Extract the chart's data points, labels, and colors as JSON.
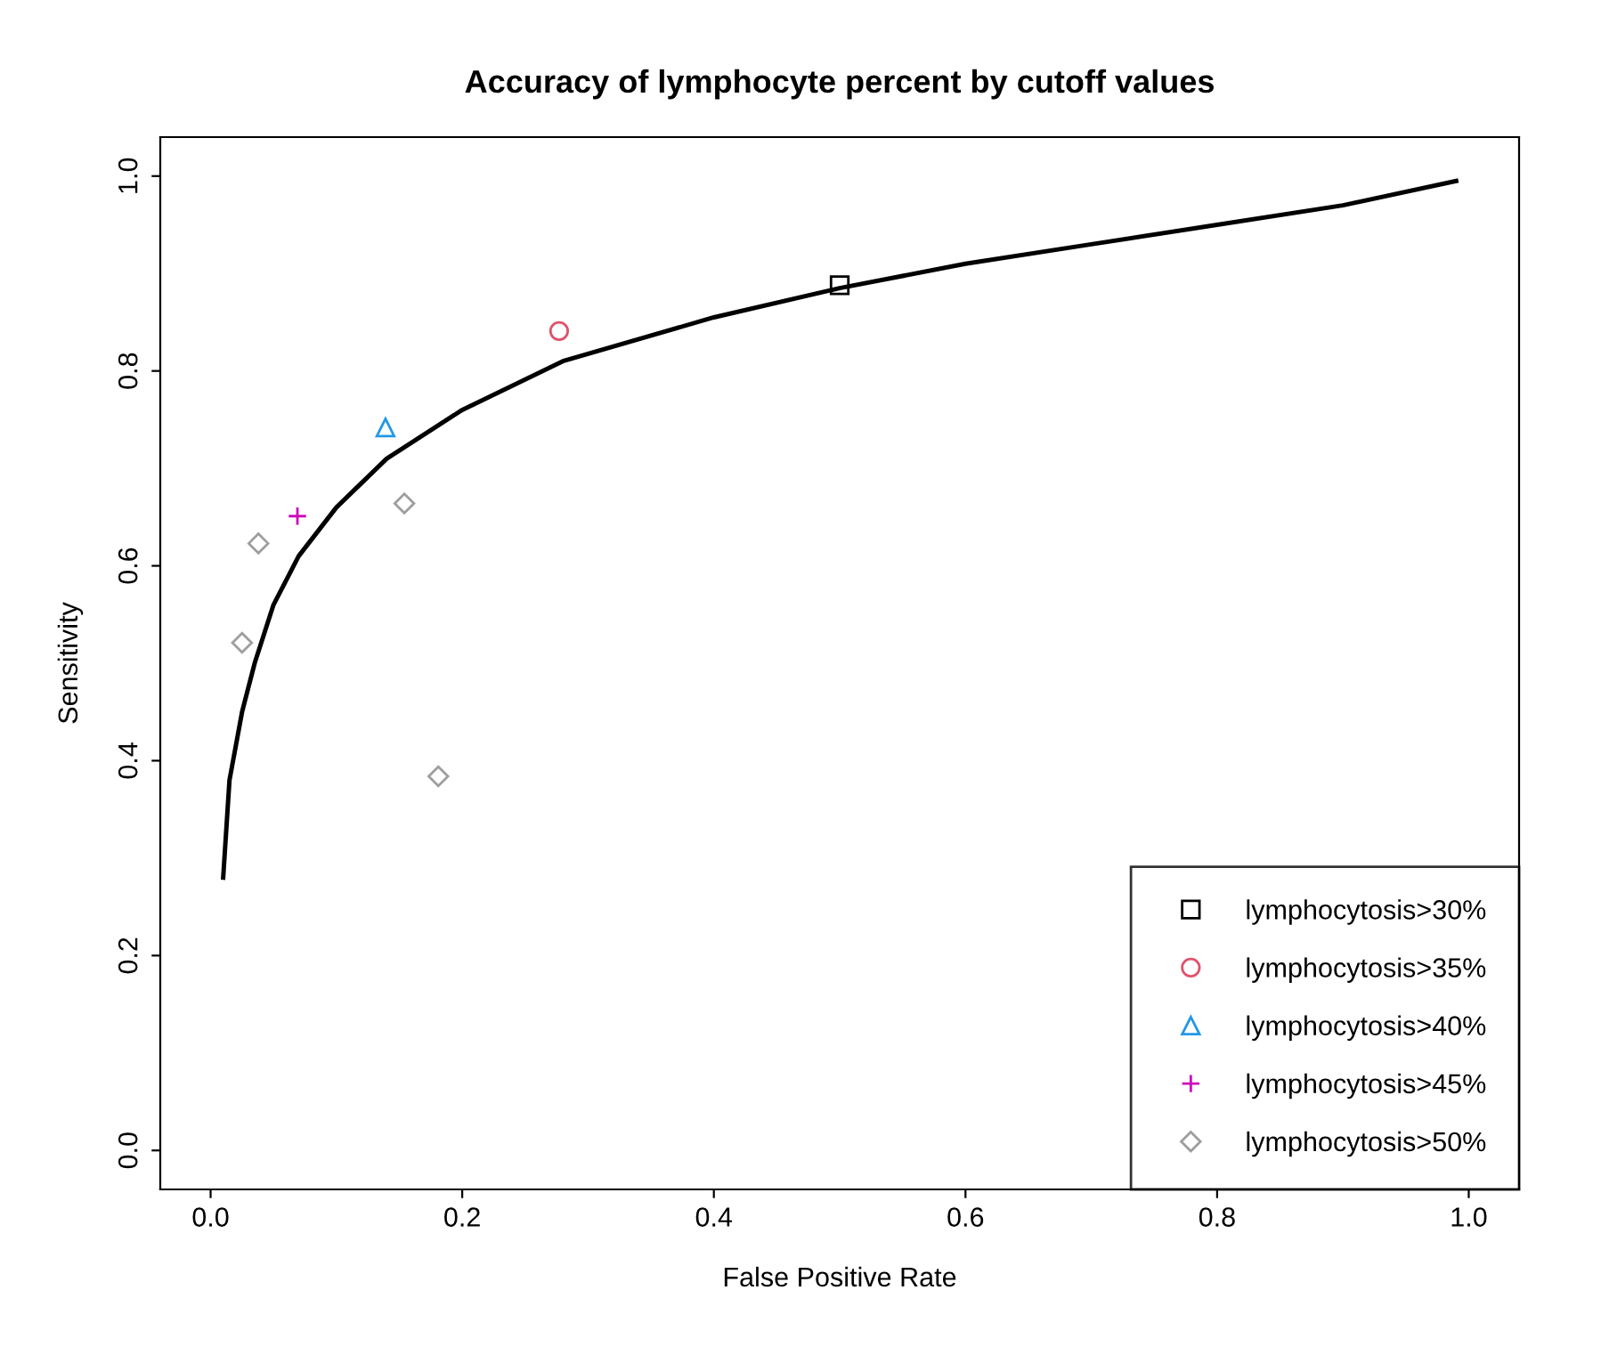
{
  "chart_data": {
    "type": "scatter",
    "title": "Accuracy of lymphocyte percent by cutoff values",
    "xlabel": "False Positive Rate",
    "ylabel": "Sensitivity",
    "xlim": [
      -0.04,
      1.04
    ],
    "ylim": [
      -0.04,
      1.04
    ],
    "xticks": [
      {
        "value": 0,
        "label": "0.0"
      },
      0.2,
      0.4,
      0.6,
      0.8,
      {
        "value": 1,
        "label": "1.0"
      }
    ],
    "yticks": [
      {
        "value": 0,
        "label": "0.0"
      },
      0.2,
      0.4,
      0.6,
      0.8,
      {
        "value": 1,
        "label": "1.0"
      }
    ],
    "grid": false,
    "legend": "bottom right",
    "series": [
      {
        "type": "line",
        "color": "#000000",
        "marker": "none",
        "line_style": "solid",
        "x": [
          0.01,
          0.015,
          0.025,
          0.035,
          0.05,
          0.07,
          0.1,
          0.14,
          0.2,
          0.28,
          0.4,
          0.5,
          0.6,
          0.7,
          0.8,
          0.9,
          0.99
        ],
        "values": [
          0.28,
          0.38,
          0.45,
          0.5,
          0.56,
          0.61,
          0.66,
          0.71,
          0.76,
          0.81,
          0.855,
          0.885,
          0.91,
          0.93,
          0.95,
          0.97,
          0.995
        ]
      },
      {
        "name": "lymphocytosis>30%",
        "color": "#000000",
        "marker": "square",
        "x": [
          0.5
        ],
        "values": [
          0.888
        ]
      },
      {
        "name": "lymphocytosis>35%",
        "color": "#df536b",
        "marker": "circle",
        "x": [
          0.277
        ],
        "values": [
          0.841
        ]
      },
      {
        "name": "lymphocytosis>40%",
        "color": "#2297e6",
        "marker": "triangle",
        "x": [
          0.139
        ],
        "values": [
          0.742
        ]
      },
      {
        "name": "lymphocytosis>45%",
        "color": "#cd0bbc",
        "marker": "cross",
        "x": [
          0.069
        ],
        "values": [
          0.651
        ]
      },
      {
        "name": "lymphocytosis>50%",
        "color": "#9e9e9e",
        "marker": "diamond",
        "x": [
          0.038,
          0.025,
          0.154,
          0.181
        ],
        "values": [
          0.623,
          0.521,
          0.664,
          0.384
        ]
      }
    ]
  }
}
